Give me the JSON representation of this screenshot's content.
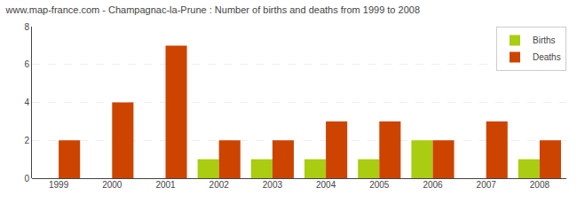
{
  "chart_data": {
    "type": "bar",
    "title": "www.map-france.com - Champagnac-la-Prune : Number of births and deaths from 1999 to 2008",
    "categories": [
      "1999",
      "2000",
      "2001",
      "2002",
      "2003",
      "2004",
      "2005",
      "2006",
      "2007",
      "2008"
    ],
    "series": [
      {
        "name": "Births",
        "color": "#aacc11",
        "values": [
          0,
          0,
          0,
          1,
          1,
          1,
          1,
          2,
          0,
          1
        ]
      },
      {
        "name": "Deaths",
        "color": "#cc4400",
        "values": [
          2,
          4,
          7,
          2,
          2,
          3,
          3,
          2,
          3,
          2
        ]
      }
    ],
    "ylim": [
      0,
      8
    ],
    "yticks": [
      0,
      2,
      4,
      6,
      8
    ],
    "grid": true,
    "legend": "upper right"
  }
}
